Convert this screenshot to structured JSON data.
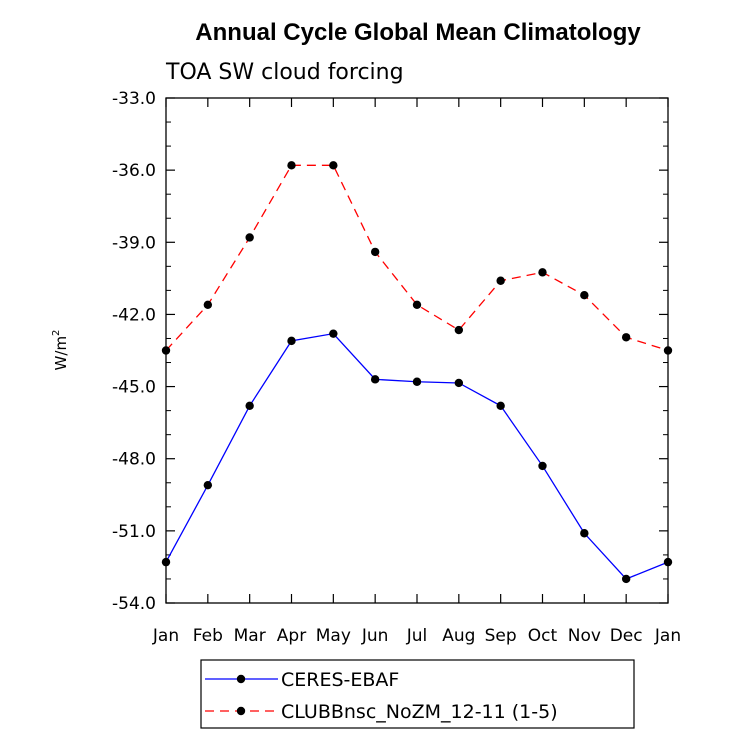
{
  "chart_data": {
    "type": "line",
    "title": "Annual Cycle Global Mean Climatology",
    "subtitle": "TOA SW cloud forcing",
    "ylabel": "W/m",
    "ylabel_sup": "2",
    "xlabel": "",
    "categories": [
      "Jan",
      "Feb",
      "Mar",
      "Apr",
      "May",
      "Jun",
      "Jul",
      "Aug",
      "Sep",
      "Oct",
      "Nov",
      "Dec",
      "Jan"
    ],
    "yticks": [
      "-33.0",
      "-36.0",
      "-39.0",
      "-42.0",
      "-45.0",
      "-48.0",
      "-51.0",
      "-54.0"
    ],
    "ylim": [
      -54.0,
      -33.0
    ],
    "grid": false,
    "legend_position": "bottom",
    "series": [
      {
        "name": "CERES-EBAF",
        "color": "#0000ff",
        "dash": "solid",
        "marker": "filled-circle",
        "values": [
          -52.3,
          -49.1,
          -45.8,
          -43.1,
          -42.8,
          -44.7,
          -44.8,
          -44.85,
          -45.8,
          -48.3,
          -51.1,
          -53.0,
          -52.3
        ]
      },
      {
        "name": "CLUBBnsc_NoZM_12-11 (1-5)",
        "color": "#ff0000",
        "dash": "dashed",
        "marker": "filled-circle",
        "values": [
          -43.5,
          -41.6,
          -38.8,
          -35.8,
          -35.8,
          -39.4,
          -41.6,
          -42.65,
          -40.6,
          -40.25,
          -41.2,
          -42.95,
          -43.5
        ]
      }
    ]
  }
}
